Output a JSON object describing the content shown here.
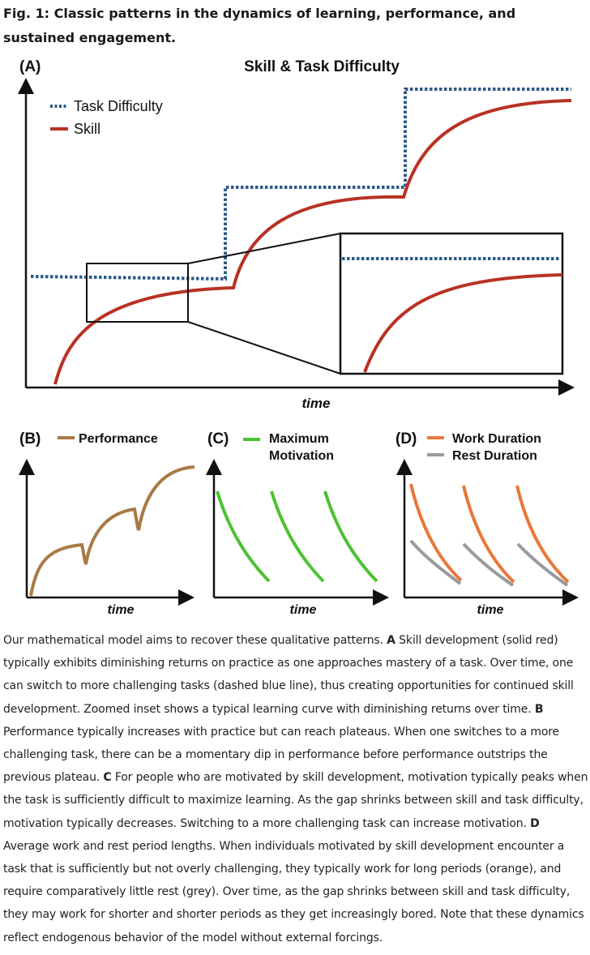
{
  "title": "Fig. 1: Classic patterns in the dynamics of learning, performance, and sustained engagement.",
  "colors": {
    "task_difficulty": "#2e5a87",
    "skill": "#b83224",
    "performance": "#a87a45",
    "motivation": "#4cc234",
    "work": "#e8783a",
    "rest": "#9a9a9a",
    "axis": "#111111"
  },
  "panel_a": {
    "label": "(A)",
    "title": "Skill & Task Difficulty",
    "legend_task": "Task Difficulty",
    "legend_skill": "Skill",
    "xlabel": "time"
  },
  "panel_b": {
    "label": "(B)",
    "legend": "Performance",
    "xlabel": "time"
  },
  "panel_c": {
    "label": "(C)",
    "legend_line1": "Maximum",
    "legend_line2": "Motivation",
    "xlabel": "time"
  },
  "panel_d": {
    "label": "(D)",
    "legend_work": "Work Duration",
    "legend_rest": "Rest Duration",
    "xlabel": "time"
  },
  "caption": [
    {
      "b": "",
      "t": "Our mathematical model aims to recover these qualitative patterns. "
    },
    {
      "b": "A",
      "t": " Skill development (solid red) typically exhibits diminishing returns on practice as one approaches mastery of a task. Over time, one can switch to more challenging tasks (dashed blue line), thus creating opportunities for continued skill development. Zoomed inset shows a typical learning curve with diminishing returns over time. "
    },
    {
      "b": "B",
      "t": " Performance typically increases with practice but can reach plateaus. When one switches to a more challenging task, there can be a momentary dip in performance before performance outstrips the previous plateau. "
    },
    {
      "b": "C",
      "t": " For people who are motivated by skill development, motivation typically peaks when the task is sufficiently difficult to maximize learning. As the gap shrinks between skill and task difficulty, motivation typically decreases. Switching to a more challenging task can increase motivation. "
    },
    {
      "b": "D",
      "t": " Average work and rest period lengths. When individuals motivated by skill development encounter a task that is sufficiently but not overly challenging, they typically work for long periods (orange), and require comparatively little rest (grey). Over time, as the gap shrinks between skill and task difficulty, they may work for shorter and shorter periods as they get increasingly bored. Note that these dynamics reflect endogenous behavior of the model without external forcings."
    }
  ]
}
